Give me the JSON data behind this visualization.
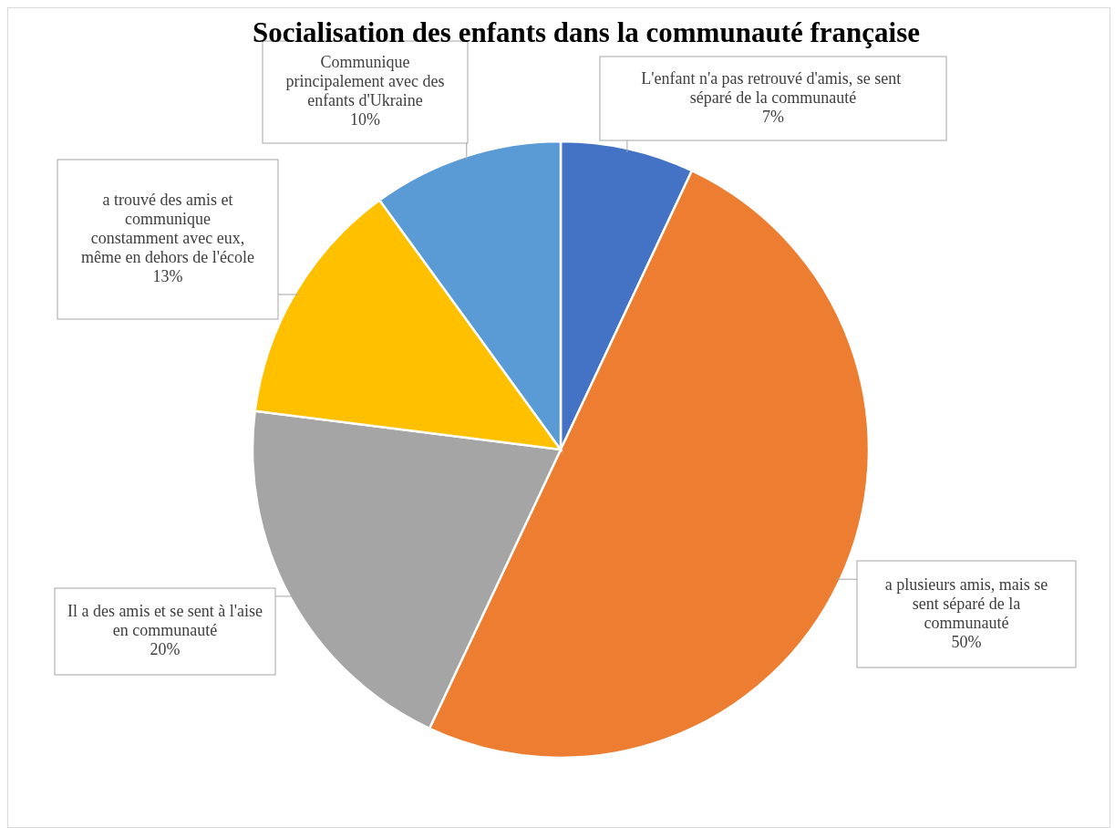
{
  "chart_data": {
    "type": "pie",
    "title": "Socialisation des enfants dans la communauté française",
    "categories": [
      "L'enfant n'a pas retrouvé d'amis, se sent  séparé de la communauté",
      "a plusieurs amis, mais se sent  séparé de la communauté",
      "Il a des amis et se sent à l'aise en communauté",
      "a trouvé des amis et communique constamment avec eux, même en dehors de l'école",
      "Communique principalement avec des enfants d'Ukraine"
    ],
    "values": [
      7,
      50,
      20,
      13,
      10
    ],
    "colors": [
      "#4472c4",
      "#ed7d31",
      "#a5a5a5",
      "#ffc000",
      "#5b9bd5"
    ],
    "value_labels": [
      "7%",
      "50%",
      "20%",
      "13%",
      "10%"
    ]
  }
}
